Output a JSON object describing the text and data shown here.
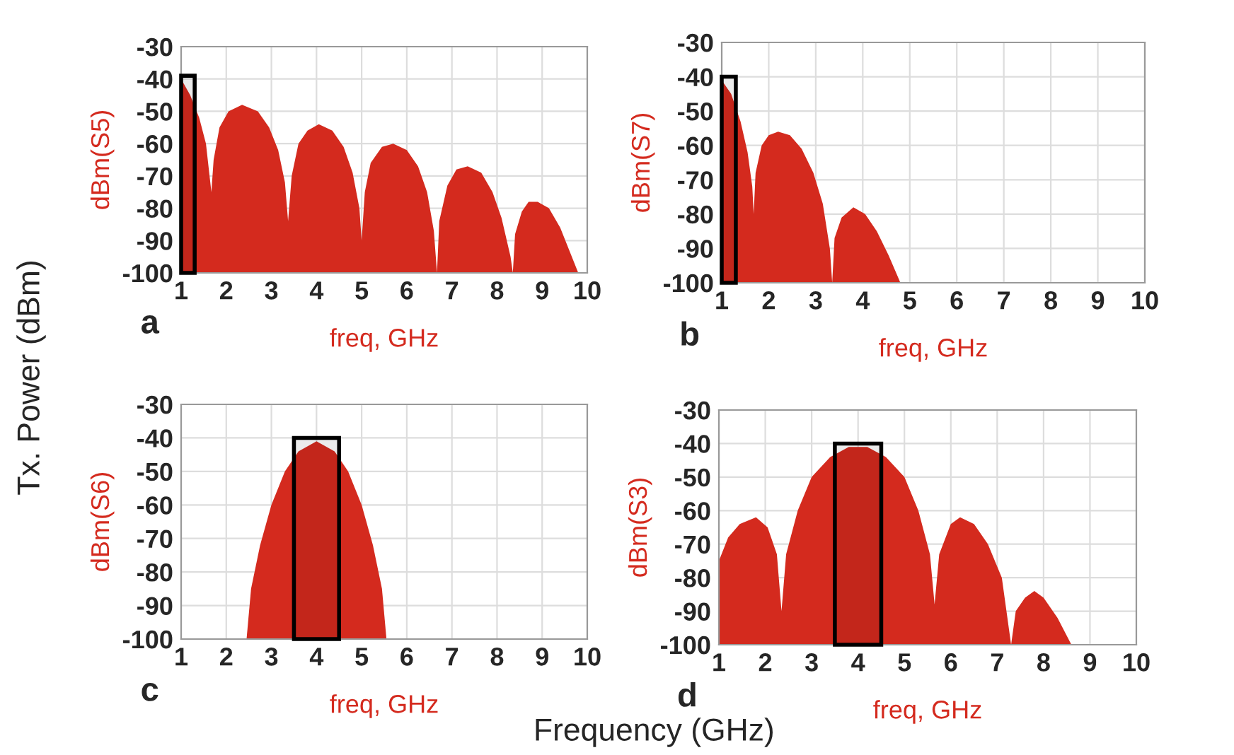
{
  "chart_data": [
    {
      "type": "area",
      "ylabel": "dBm(S5)",
      "xlabel": "freq, GHz",
      "annotations": [
        "a",
        "Tx. Power (dBm)"
      ],
      "xlim": [
        1,
        10
      ],
      "xticks": [
        1,
        2,
        3,
        4,
        5,
        6,
        7,
        8,
        9,
        10
      ],
      "ylim": [
        -100,
        -30
      ],
      "yticks": [
        -100,
        -90,
        -80,
        -70,
        -60,
        -50,
        -40,
        -30
      ],
      "grid": true,
      "bands": [
        {
          "axis": "x",
          "from": 1.0,
          "to": 1.3,
          "color": "#000000"
        }
      ],
      "series": [
        {
          "color": "#d42a1e",
          "x": [
            1.0,
            1.0,
            1.2,
            1.4,
            1.55,
            1.67,
            1.72,
            1.85,
            2.05,
            2.35,
            2.7,
            2.95,
            3.15,
            3.3,
            3.37,
            3.45,
            3.6,
            3.8,
            4.05,
            4.35,
            4.6,
            4.8,
            4.95,
            5.0,
            5.07,
            5.2,
            5.45,
            5.7,
            6.0,
            6.25,
            6.45,
            6.6,
            6.67,
            6.72,
            6.9,
            7.1,
            7.35,
            7.65,
            7.9,
            8.1,
            8.3,
            8.35,
            8.4,
            8.55,
            8.7,
            8.9,
            9.15,
            9.4,
            9.6,
            9.8
          ],
          "values": [
            -100,
            -40,
            -45,
            -52,
            -60,
            -75,
            -65,
            -55,
            -50,
            -48,
            -50,
            -55,
            -62,
            -72,
            -84,
            -70,
            -60,
            -56,
            -54,
            -56,
            -61,
            -69,
            -80,
            -90,
            -75,
            -66,
            -61,
            -60,
            -62,
            -67,
            -75,
            -87,
            -100,
            -84,
            -73,
            -68,
            -67,
            -69,
            -75,
            -83,
            -95,
            -100,
            -88,
            -81,
            -78,
            -78,
            -80,
            -86,
            -93,
            -100
          ]
        }
      ]
    },
    {
      "type": "area",
      "ylabel": "dBm(S7)",
      "xlabel": "freq, GHz",
      "annotations": [
        "b"
      ],
      "xlim": [
        1,
        10
      ],
      "xticks": [
        1,
        2,
        3,
        4,
        5,
        6,
        7,
        8,
        9,
        10
      ],
      "ylim": [
        -100,
        -30
      ],
      "yticks": [
        -100,
        -90,
        -80,
        -70,
        -60,
        -50,
        -40,
        -30
      ],
      "grid": true,
      "bands": [
        {
          "axis": "x",
          "from": 1.0,
          "to": 1.3,
          "color": "#000000"
        }
      ],
      "series": [
        {
          "color": "#d42a1e",
          "x": [
            1.0,
            1.0,
            1.2,
            1.4,
            1.55,
            1.65,
            1.68,
            1.72,
            1.85,
            2.0,
            2.2,
            2.45,
            2.7,
            2.95,
            3.15,
            3.3,
            3.35,
            3.4,
            3.55,
            3.8,
            4.05,
            4.3,
            4.55,
            4.8
          ],
          "values": [
            -100,
            -41,
            -45,
            -53,
            -62,
            -72,
            -80,
            -68,
            -60,
            -57,
            -56,
            -57,
            -61,
            -68,
            -77,
            -90,
            -100,
            -87,
            -81,
            -78,
            -80,
            -85,
            -92,
            -100
          ]
        }
      ]
    },
    {
      "type": "area",
      "ylabel": "dBm(S6)",
      "xlabel": "freq, GHz",
      "annotations": [
        "c"
      ],
      "xlim": [
        1,
        10
      ],
      "xticks": [
        1,
        2,
        3,
        4,
        5,
        6,
        7,
        8,
        9,
        10
      ],
      "ylim": [
        -100,
        -30
      ],
      "yticks": [
        -100,
        -90,
        -80,
        -70,
        -60,
        -50,
        -40,
        -30
      ],
      "grid": true,
      "bands": [
        {
          "axis": "x",
          "from": 3.5,
          "to": 4.5,
          "color": "#000000"
        }
      ],
      "series": [
        {
          "color": "#d42a1e",
          "x": [
            2.45,
            2.55,
            2.75,
            3.0,
            3.3,
            3.6,
            4.0,
            4.4,
            4.7,
            5.0,
            5.25,
            5.45,
            5.55
          ],
          "values": [
            -100,
            -85,
            -72,
            -60,
            -50,
            -44,
            -41,
            -44,
            -50,
            -60,
            -72,
            -85,
            -100
          ]
        }
      ]
    },
    {
      "type": "area",
      "ylabel": "dBm(S3)",
      "xlabel": "freq, GHz",
      "annotations": [
        "d",
        "Frequency (GHz)"
      ],
      "xlim": [
        1,
        10
      ],
      "xticks": [
        1,
        2,
        3,
        4,
        5,
        6,
        7,
        8,
        9,
        10
      ],
      "ylim": [
        -100,
        -30
      ],
      "yticks": [
        -100,
        -90,
        -80,
        -70,
        -60,
        -50,
        -40,
        -30
      ],
      "grid": true,
      "bands": [
        {
          "axis": "x",
          "from": 3.5,
          "to": 4.5,
          "color": "#000000"
        }
      ],
      "series": [
        {
          "color": "#d42a1e",
          "x": [
            1.0,
            1.0,
            1.2,
            1.45,
            1.8,
            2.05,
            2.25,
            2.35,
            2.45,
            2.7,
            3.0,
            3.4,
            3.8,
            4.2,
            4.6,
            5.0,
            5.3,
            5.55,
            5.65,
            5.75,
            6.0,
            6.2,
            6.5,
            6.8,
            7.1,
            7.3,
            7.4,
            7.6,
            7.8,
            8.0,
            8.3,
            8.6
          ],
          "values": [
            -100,
            -75,
            -68,
            -64,
            -62,
            -65,
            -73,
            -90,
            -73,
            -60,
            -50,
            -44,
            -41,
            -41,
            -44,
            -50,
            -60,
            -73,
            -88,
            -73,
            -64,
            -62,
            -64,
            -70,
            -80,
            -100,
            -90,
            -86,
            -84,
            -86,
            -92,
            -100
          ]
        }
      ]
    }
  ]
}
